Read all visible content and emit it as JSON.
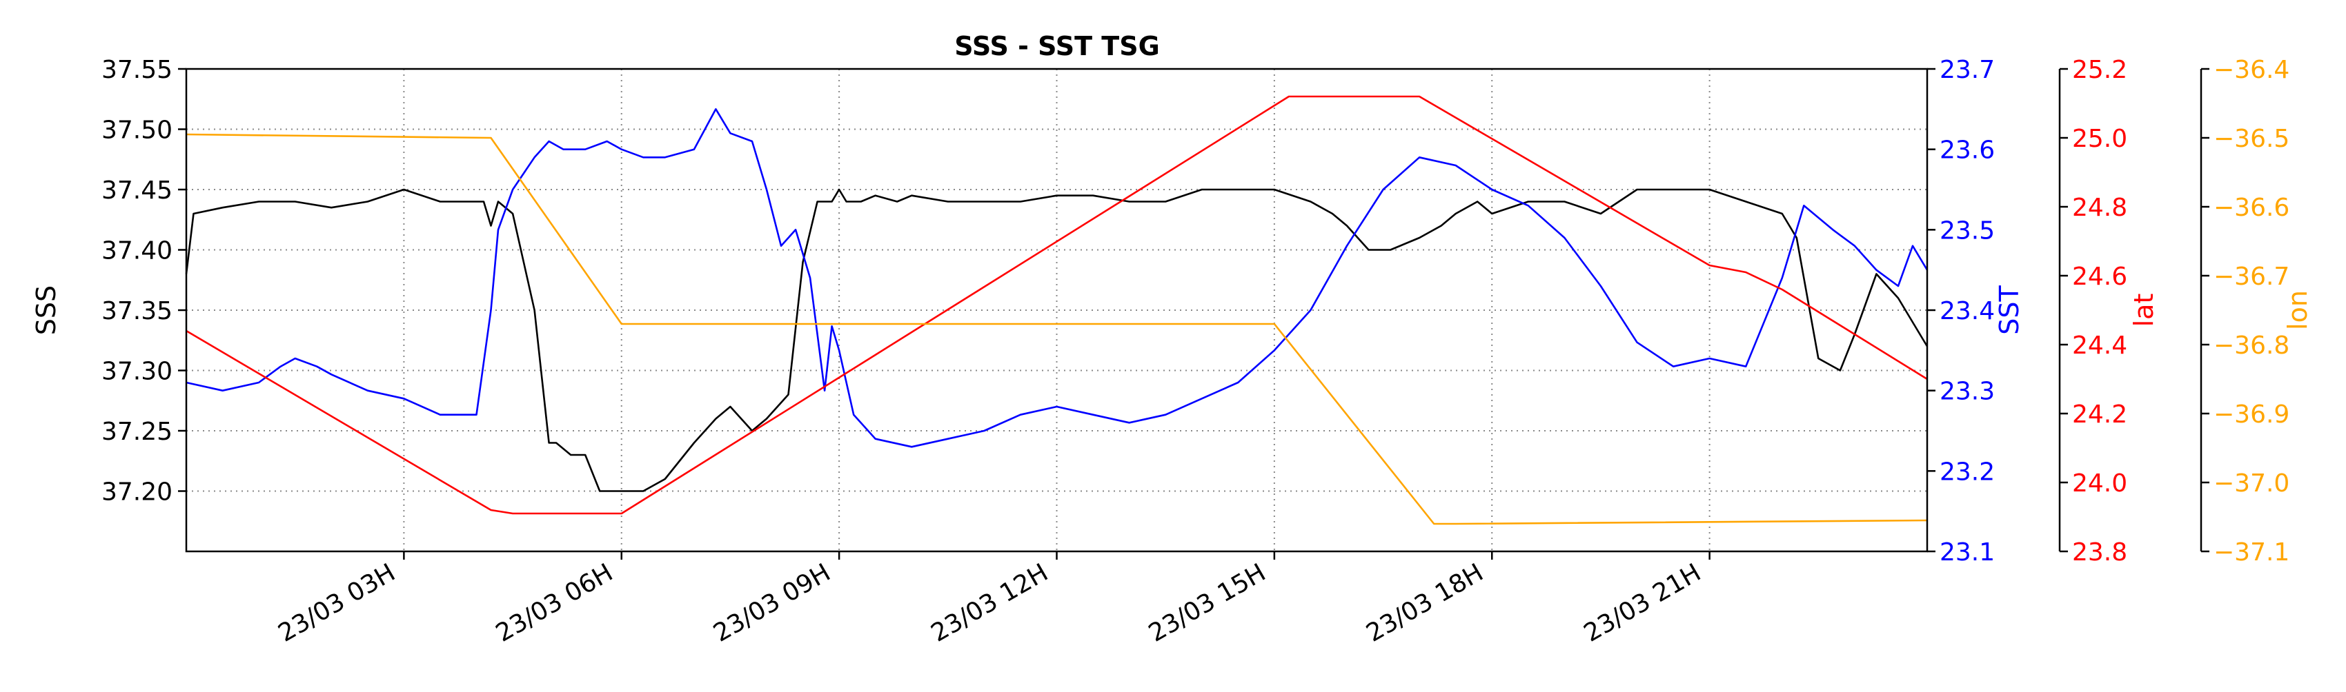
{
  "chart_data": {
    "type": "line",
    "title": "SSS - SST TSG",
    "x_tick_labels": [
      "23/03 03H",
      "23/03 06H",
      "23/03 09H",
      "23/03 12H",
      "23/03 15H",
      "23/03 18H",
      "23/03 21H"
    ],
    "x_ticks_hours": [
      3,
      6,
      9,
      12,
      15,
      18,
      21
    ],
    "xlim_hours": [
      0,
      24
    ],
    "grid": true,
    "axes": [
      {
        "id": "sss",
        "label": "SSS",
        "color": "#000000",
        "ylim": [
          37.15,
          37.55
        ],
        "ticks": [
          37.55,
          37.5,
          37.45,
          37.4,
          37.35,
          37.3,
          37.25,
          37.2
        ],
        "tick_labels": [
          "37.55",
          "37.50",
          "37.45",
          "37.40",
          "37.35",
          "37.30",
          "37.25",
          "37.20"
        ]
      },
      {
        "id": "sst",
        "label": "SST",
        "color": "#0000ff",
        "ylim": [
          23.1,
          23.7
        ],
        "ticks": [
          23.7,
          23.6,
          23.5,
          23.4,
          23.3,
          23.2,
          23.1
        ],
        "tick_labels": [
          "23.7",
          "23.6",
          "23.5",
          "23.4",
          "23.3",
          "23.2",
          "23.1"
        ]
      },
      {
        "id": "lat",
        "label": "lat",
        "color": "#ff0000",
        "ylim": [
          23.8,
          25.2
        ],
        "ticks": [
          25.2,
          25.0,
          24.8,
          24.6,
          24.4,
          24.2,
          24.0,
          23.8
        ],
        "tick_labels": [
          "25.2",
          "25.0",
          "24.8",
          "24.6",
          "24.4",
          "24.2",
          "24.0",
          "23.8"
        ]
      },
      {
        "id": "lon",
        "label": "lon",
        "color": "#ffa500",
        "ylim": [
          -37.1,
          -36.4
        ],
        "ticks": [
          -36.4,
          -36.5,
          -36.6,
          -36.7,
          -36.8,
          -36.9,
          -37.0,
          -37.1
        ],
        "tick_labels": [
          "−36.4",
          "−36.5",
          "−36.6",
          "−36.7",
          "−36.8",
          "−36.9",
          "−37.0",
          "−37.1"
        ]
      }
    ],
    "series": [
      {
        "name": "SSS",
        "axis": "sss",
        "color": "#000000",
        "x": [
          0.0,
          0.1,
          0.5,
          1.0,
          1.5,
          2.0,
          2.5,
          3.0,
          3.5,
          4.0,
          4.1,
          4.2,
          4.3,
          4.5,
          4.8,
          5.0,
          5.1,
          5.3,
          5.5,
          5.7,
          6.0,
          6.3,
          6.6,
          7.0,
          7.3,
          7.5,
          7.8,
          8.0,
          8.3,
          8.5,
          8.7,
          8.9,
          9.0,
          9.1,
          9.3,
          9.5,
          9.8,
          10.0,
          10.5,
          11.0,
          11.5,
          12.0,
          12.5,
          13.0,
          13.5,
          14.0,
          14.5,
          15.0,
          15.5,
          15.8,
          16.0,
          16.3,
          16.6,
          17.0,
          17.3,
          17.5,
          17.8,
          18.0,
          18.5,
          19.0,
          19.5,
          20.0,
          20.5,
          21.0,
          21.5,
          22.0,
          22.2,
          22.5,
          22.8,
          23.0,
          23.3,
          23.6,
          23.8,
          24.0
        ],
        "y": [
          37.38,
          37.43,
          37.435,
          37.44,
          37.44,
          37.435,
          37.44,
          37.45,
          37.44,
          37.44,
          37.44,
          37.42,
          37.44,
          37.43,
          37.35,
          37.24,
          37.24,
          37.23,
          37.23,
          37.2,
          37.2,
          37.2,
          37.21,
          37.24,
          37.26,
          37.27,
          37.25,
          37.26,
          37.28,
          37.39,
          37.44,
          37.44,
          37.45,
          37.44,
          37.44,
          37.445,
          37.44,
          37.445,
          37.44,
          37.44,
          37.44,
          37.445,
          37.445,
          37.44,
          37.44,
          37.45,
          37.45,
          37.45,
          37.44,
          37.43,
          37.42,
          37.4,
          37.4,
          37.41,
          37.42,
          37.43,
          37.44,
          37.43,
          37.44,
          37.44,
          37.43,
          37.45,
          37.45,
          37.45,
          37.44,
          37.43,
          37.41,
          37.31,
          37.3,
          37.33,
          37.38,
          37.36,
          37.34,
          37.32
        ]
      },
      {
        "name": "SST",
        "axis": "sst",
        "color": "#0000ff",
        "x": [
          0.0,
          0.5,
          1.0,
          1.3,
          1.5,
          1.8,
          2.0,
          2.5,
          3.0,
          3.5,
          4.0,
          4.2,
          4.3,
          4.5,
          4.8,
          5.0,
          5.2,
          5.5,
          5.8,
          6.0,
          6.3,
          6.6,
          7.0,
          7.3,
          7.5,
          7.8,
          8.0,
          8.2,
          8.4,
          8.6,
          8.8,
          8.9,
          9.0,
          9.2,
          9.5,
          10.0,
          10.5,
          11.0,
          11.5,
          12.0,
          12.5,
          13.0,
          13.5,
          14.0,
          14.5,
          15.0,
          15.5,
          16.0,
          16.5,
          17.0,
          17.5,
          18.0,
          18.5,
          19.0,
          19.5,
          20.0,
          20.5,
          21.0,
          21.5,
          22.0,
          22.3,
          22.7,
          23.0,
          23.3,
          23.6,
          23.8,
          24.0
        ],
        "y": [
          23.31,
          23.3,
          23.31,
          23.33,
          23.34,
          23.33,
          23.32,
          23.3,
          23.29,
          23.27,
          23.27,
          23.4,
          23.5,
          23.55,
          23.59,
          23.61,
          23.6,
          23.6,
          23.61,
          23.6,
          23.59,
          23.59,
          23.6,
          23.65,
          23.62,
          23.61,
          23.55,
          23.48,
          23.5,
          23.44,
          23.3,
          23.38,
          23.35,
          23.27,
          23.24,
          23.23,
          23.24,
          23.25,
          23.27,
          23.28,
          23.27,
          23.26,
          23.27,
          23.29,
          23.31,
          23.35,
          23.4,
          23.48,
          23.55,
          23.59,
          23.58,
          23.55,
          23.53,
          23.49,
          23.43,
          23.36,
          23.33,
          23.34,
          23.33,
          23.44,
          23.53,
          23.5,
          23.48,
          23.45,
          23.43,
          23.48,
          23.45
        ]
      },
      {
        "name": "lat",
        "axis": "lat",
        "color": "#ff0000",
        "x": [
          0.0,
          4.2,
          4.5,
          6.0,
          15.2,
          17.0,
          21.0,
          21.5,
          22.0,
          24.0
        ],
        "y": [
          24.44,
          23.92,
          23.91,
          23.91,
          25.12,
          25.12,
          24.63,
          24.61,
          24.56,
          24.3
        ]
      },
      {
        "name": "lon",
        "axis": "lon",
        "color": "#ffa500",
        "x": [
          0.0,
          4.2,
          6.0,
          6.3,
          15.0,
          17.2,
          17.5,
          24.0
        ],
        "y": [
          -36.495,
          -36.5,
          -36.77,
          -36.77,
          -36.77,
          -37.06,
          -37.06,
          -37.055
        ]
      }
    ]
  }
}
